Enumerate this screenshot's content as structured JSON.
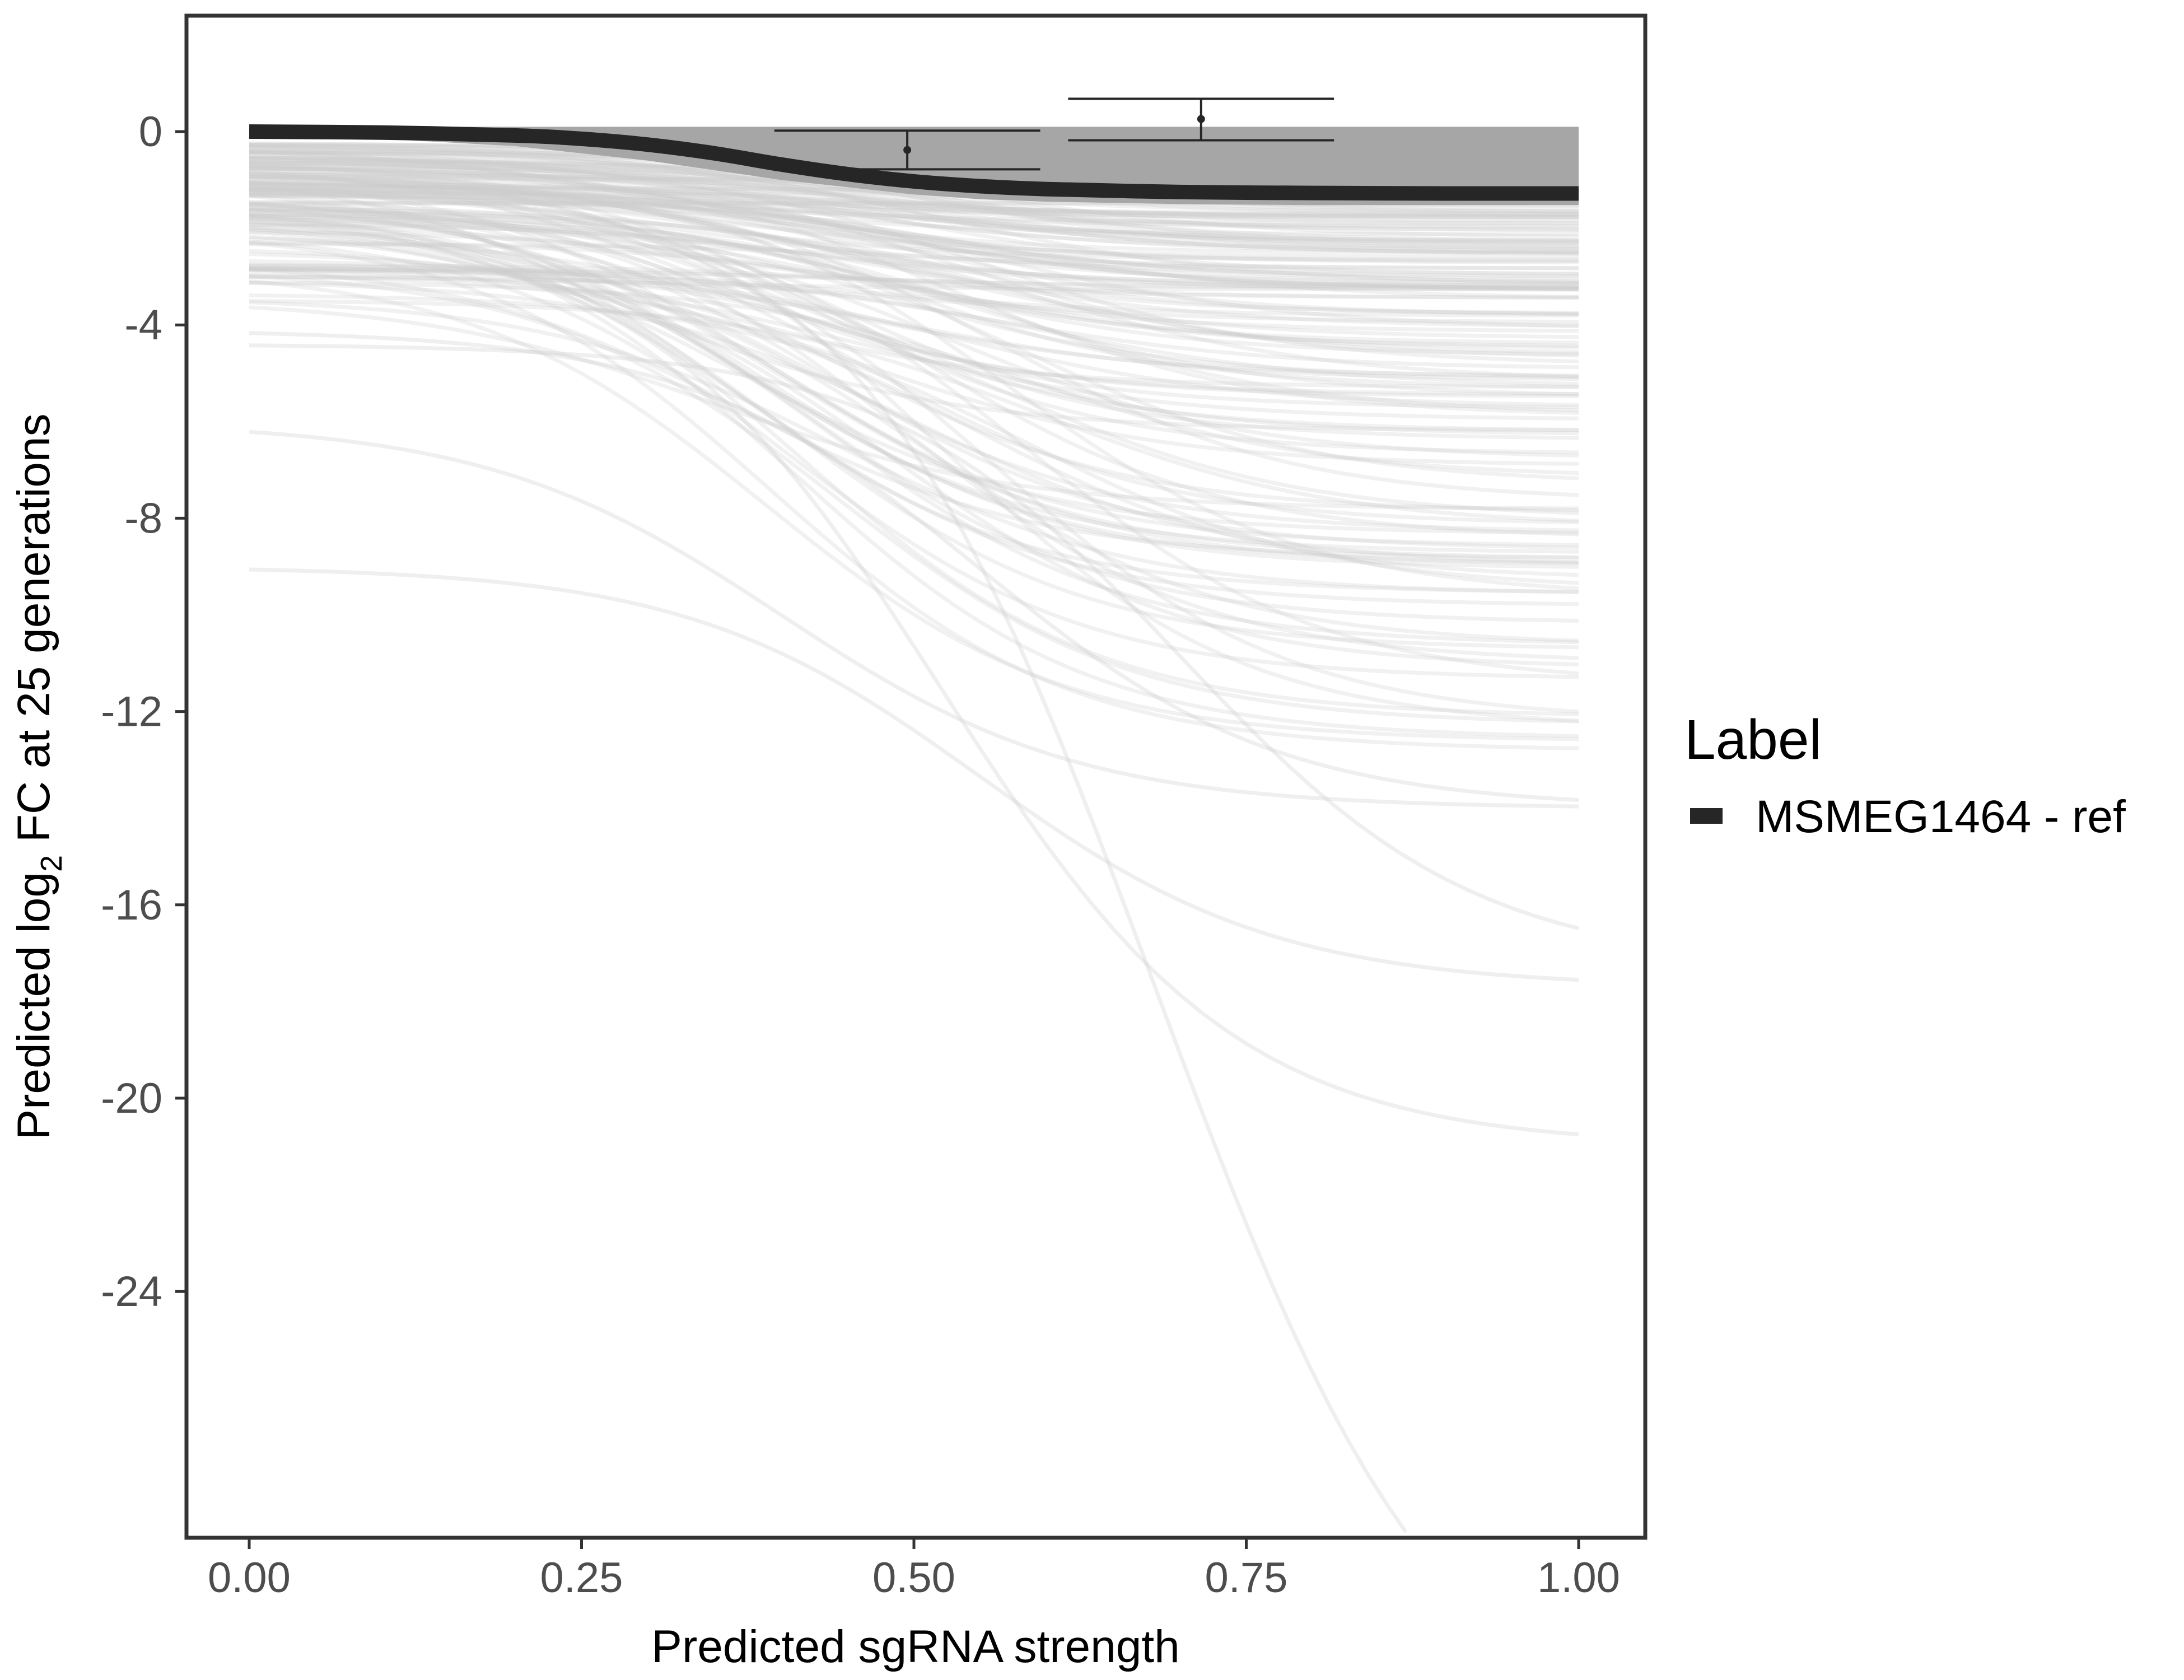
{
  "chart_data": {
    "type": "line",
    "title": "",
    "xlabel": "Predicted sgRNA strength",
    "ylabel": {
      "prefix": "Predicted  log",
      "subscript": "2",
      "suffix": " FC at 25 generations"
    },
    "xlim": [
      -0.1,
      2.09
    ],
    "ylim": [
      -29.5,
      2.4
    ],
    "x_ticks": [
      0.0,
      0.25,
      0.5,
      0.75,
      1.0
    ],
    "x_tick_labels": [
      "0.00",
      "0.25",
      "0.50",
      "0.75",
      "1.00"
    ],
    "y_ticks": [
      0,
      -4,
      -8,
      -12,
      -16,
      -20,
      -24
    ],
    "y_tick_labels": [
      "0",
      "-4",
      "-8",
      "-12",
      "-16",
      "-20",
      "-24"
    ],
    "grid": false,
    "legend": {
      "title": "Label",
      "placement": "right",
      "entries": [
        {
          "label": "MSMEG1464 - ref",
          "color": "#262626"
        }
      ]
    },
    "highlight_series": {
      "name": "MSMEG1464 - ref",
      "color": "#262626",
      "x": [
        0.0,
        0.1,
        0.2,
        0.25,
        0.3,
        0.35,
        0.4,
        0.45,
        0.5,
        0.55,
        0.6,
        0.7,
        0.8,
        0.9,
        1.0
      ],
      "y": [
        0.0,
        -0.02,
        -0.08,
        -0.15,
        -0.27,
        -0.45,
        -0.68,
        -0.88,
        -1.03,
        -1.13,
        -1.19,
        -1.25,
        -1.27,
        -1.28,
        -1.28
      ]
    },
    "band": {
      "x": [
        0.0,
        0.1,
        0.2,
        0.25,
        0.3,
        0.35,
        0.4,
        0.45,
        0.5,
        0.55,
        0.6,
        0.7,
        0.8,
        0.9,
        1.0
      ],
      "upper": [
        0.1,
        0.1,
        0.1,
        0.1,
        0.1,
        0.1,
        0.1,
        0.1,
        0.1,
        0.1,
        0.1,
        0.1,
        0.1,
        0.1,
        0.1
      ],
      "lower": [
        -0.1,
        -0.15,
        -0.3,
        -0.45,
        -0.6,
        -0.8,
        -1.0,
        -1.15,
        -1.3,
        -1.4,
        -1.45,
        -1.5,
        -1.52,
        -1.52,
        -1.52
      ],
      "color": "#a6a6a6"
    },
    "error_bars": [
      {
        "x": 0.495,
        "y": -0.38,
        "xmin": 0.395,
        "xmax": 0.595,
        "ymin": -0.78,
        "ymax": 0.02
      },
      {
        "x": 0.716,
        "y": 0.26,
        "xmin": 0.616,
        "xmax": 0.816,
        "ymin": -0.18,
        "ymax": 0.68
      }
    ],
    "background_curve_families": [
      {
        "count": 70,
        "y0_min": -0.2,
        "y0_max": -1.5,
        "y1_min": -0.8,
        "y1_max": -3.2,
        "mid_min": 0.3,
        "mid_max": 0.55,
        "seed": 11
      },
      {
        "count": 50,
        "y0_min": -0.5,
        "y0_max": -3.0,
        "y1_min": -3.0,
        "y1_max": -6.5,
        "mid_min": 0.3,
        "mid_max": 0.6,
        "seed": 23
      },
      {
        "count": 30,
        "y0_min": -0.5,
        "y0_max": -3.5,
        "y1_min": -6.5,
        "y1_max": -10.5,
        "mid_min": 0.35,
        "mid_max": 0.6,
        "seed": 37
      },
      {
        "count": 14,
        "y0_min": -0.8,
        "y0_max": -4.0,
        "y1_min": -10.5,
        "y1_max": -13.0,
        "mid_min": 0.38,
        "mid_max": 0.62,
        "seed": 53
      }
    ],
    "background_curves": [
      {
        "y0": -4.1,
        "y1": -14.0,
        "mid": 0.55,
        "x_end": 1.0
      },
      {
        "y0": -4.4,
        "y1": -17.3,
        "mid": 0.7,
        "x_end": 1.0
      },
      {
        "y0": -6.0,
        "y1": -14.0,
        "mid": 0.4,
        "x_end": 1.0
      },
      {
        "y0": -9.0,
        "y1": -17.7,
        "mid": 0.55,
        "x_end": 1.0
      },
      {
        "y0": -2.0,
        "y1": -21.0,
        "mid": 0.52,
        "x_end": 1.0
      },
      {
        "y0": -1.2,
        "y1": -34.0,
        "mid": 0.68,
        "x_end": 0.87
      }
    ],
    "background_color": "#cccccc"
  }
}
